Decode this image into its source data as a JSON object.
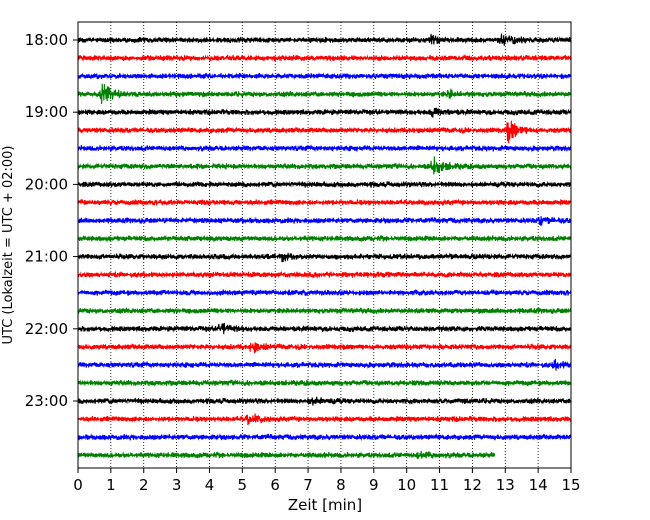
{
  "chart_data": {
    "type": "line",
    "title": "",
    "xlabel": "Zeit  [min]",
    "ylabel": "UTC (Lokalzeit = UTC + 02:00)",
    "xlim": [
      0,
      15
    ],
    "x_ticks": [
      0,
      1,
      2,
      3,
      4,
      5,
      6,
      7,
      8,
      9,
      10,
      11,
      12,
      13,
      14,
      15
    ],
    "y_tick_labels": [
      "18:00",
      "19:00",
      "20:00",
      "21:00",
      "22:00",
      "23:00"
    ],
    "grid": "vertical dotted",
    "colors": [
      "#000000",
      "#ff0000",
      "#0000ff",
      "#008000"
    ],
    "trace_interval_min": 15,
    "traces": [
      {
        "start": "18:00",
        "color": "#000000",
        "end_min": 15,
        "events": [
          {
            "t": 10.7,
            "amp": 0.35
          },
          {
            "t": 12.9,
            "amp": 0.55
          }
        ]
      },
      {
        "start": "18:15",
        "color": "#ff0000",
        "end_min": 15,
        "events": []
      },
      {
        "start": "18:30",
        "color": "#0000ff",
        "end_min": 15,
        "events": []
      },
      {
        "start": "18:45",
        "color": "#008000",
        "end_min": 15,
        "events": [
          {
            "t": 0.75,
            "amp": 1.0
          },
          {
            "t": 11.3,
            "amp": 0.3
          }
        ]
      },
      {
        "start": "19:00",
        "color": "#000000",
        "end_min": 15,
        "events": [
          {
            "t": 10.8,
            "amp": 0.35
          }
        ]
      },
      {
        "start": "19:15",
        "color": "#ff0000",
        "end_min": 15,
        "events": [
          {
            "t": 13.1,
            "amp": 1.0
          }
        ]
      },
      {
        "start": "19:30",
        "color": "#0000ff",
        "end_min": 15,
        "events": []
      },
      {
        "start": "19:45",
        "color": "#008000",
        "end_min": 15,
        "events": [
          {
            "t": 10.8,
            "amp": 0.8
          }
        ]
      },
      {
        "start": "20:00",
        "color": "#000000",
        "end_min": 15,
        "events": []
      },
      {
        "start": "20:15",
        "color": "#ff0000",
        "end_min": 15,
        "events": []
      },
      {
        "start": "20:30",
        "color": "#0000ff",
        "end_min": 15,
        "events": [
          {
            "t": 14.1,
            "amp": 0.35
          }
        ]
      },
      {
        "start": "20:45",
        "color": "#008000",
        "end_min": 15,
        "events": []
      },
      {
        "start": "21:00",
        "color": "#000000",
        "end_min": 15,
        "events": [
          {
            "t": 6.2,
            "amp": 0.3
          }
        ]
      },
      {
        "start": "21:15",
        "color": "#ff0000",
        "end_min": 15,
        "events": []
      },
      {
        "start": "21:30",
        "color": "#0000ff",
        "end_min": 15,
        "events": []
      },
      {
        "start": "21:45",
        "color": "#008000",
        "end_min": 15,
        "events": []
      },
      {
        "start": "22:00",
        "color": "#000000",
        "end_min": 15,
        "events": [
          {
            "t": 4.35,
            "amp": 0.55
          }
        ]
      },
      {
        "start": "22:15",
        "color": "#ff0000",
        "end_min": 15,
        "events": [
          {
            "t": 5.3,
            "amp": 0.45
          }
        ]
      },
      {
        "start": "22:30",
        "color": "#0000ff",
        "end_min": 15,
        "events": [
          {
            "t": 14.5,
            "amp": 0.3
          }
        ]
      },
      {
        "start": "22:45",
        "color": "#008000",
        "end_min": 15,
        "events": []
      },
      {
        "start": "23:00",
        "color": "#000000",
        "end_min": 15,
        "events": [
          {
            "t": 7.1,
            "amp": 0.3
          }
        ]
      },
      {
        "start": "23:15",
        "color": "#ff0000",
        "end_min": 15,
        "events": [
          {
            "t": 5.2,
            "amp": 0.55
          }
        ]
      },
      {
        "start": "23:30",
        "color": "#0000ff",
        "end_min": 15,
        "events": []
      },
      {
        "start": "23:45",
        "color": "#008000",
        "end_min": 12.7,
        "events": [
          {
            "t": 10.4,
            "amp": 0.3
          }
        ]
      }
    ]
  }
}
